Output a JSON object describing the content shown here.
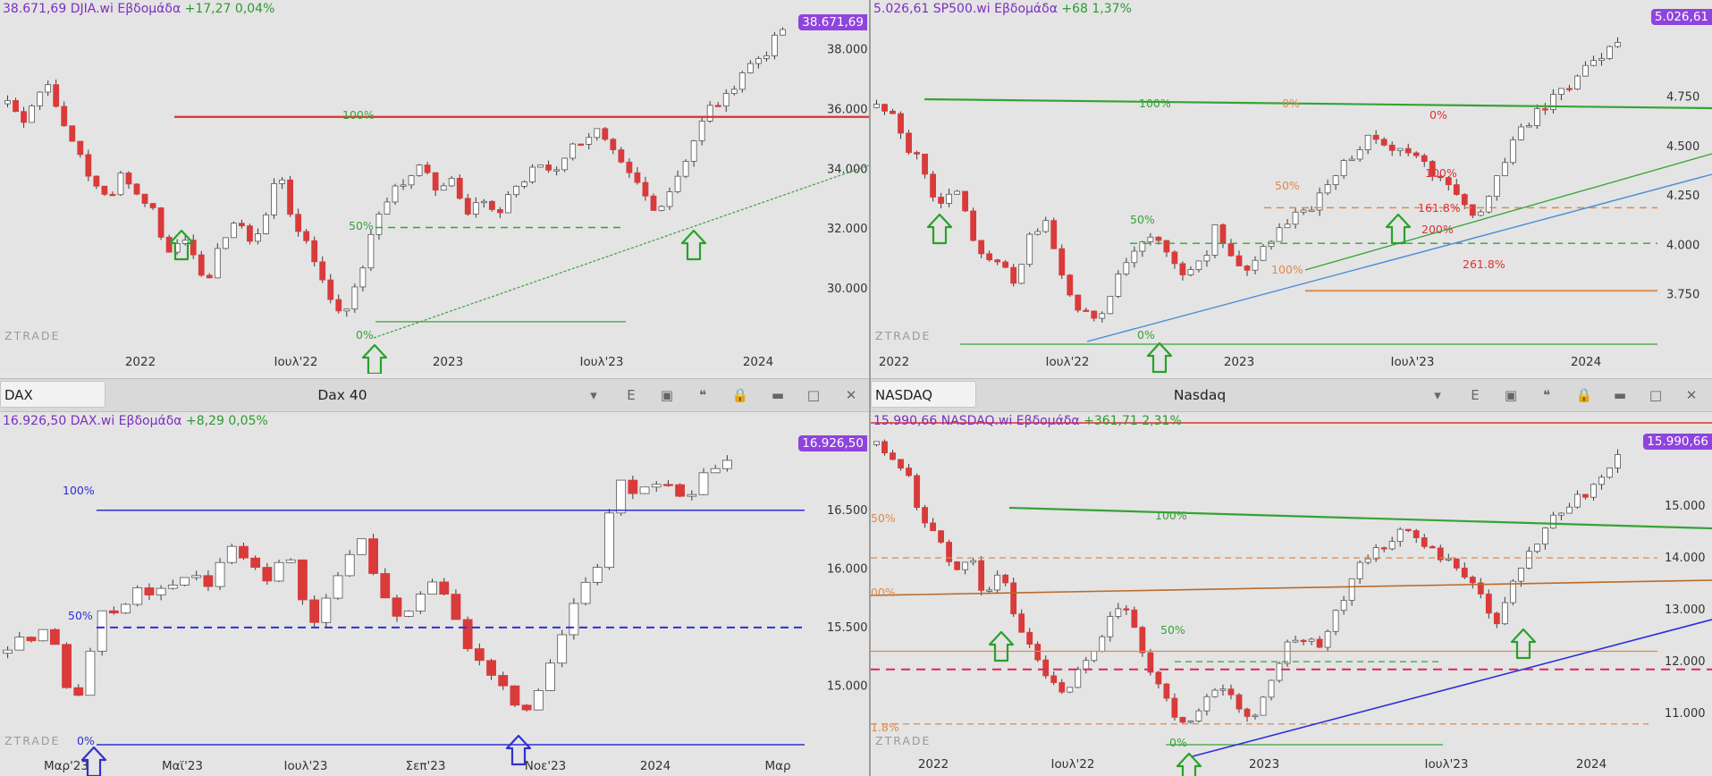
{
  "panes": [
    {
      "id": "djia",
      "info": {
        "price": "38.671,69",
        "symbol": "DJIA.wi",
        "period": "Εβδομάδα",
        "change": "+17,27",
        "pct": "0,04%"
      },
      "price_tag": "38.671,69",
      "watermark": "ZTRADE",
      "toolbar": null
    },
    {
      "id": "sp500",
      "info": {
        "price": "5.026,61",
        "symbol": "SP500.wi",
        "period": "Εβδομάδα",
        "change": "+68",
        "pct": "1,37%"
      },
      "price_tag": "5.026,61",
      "watermark": "ZTRADE",
      "toolbar": null
    },
    {
      "id": "dax",
      "info": {
        "price": "16.926,50",
        "symbol": "DAX.wi",
        "period": "Εβδομάδα",
        "change": "+8,29",
        "pct": "0,05%"
      },
      "price_tag": "16.926,50",
      "watermark": "ZTRADE",
      "toolbar": {
        "symbol": "DAX",
        "name": "Dax 40",
        "menu_letter": "E"
      }
    },
    {
      "id": "nasdaq",
      "info": {
        "price": "15.990,66",
        "symbol": "NASDAQ.wi",
        "period": "Εβδομάδα",
        "change": "+361,71",
        "pct": "2,31%"
      },
      "price_tag": "15.990,66",
      "watermark": "ZTRADE",
      "toolbar": {
        "symbol": "NASDAQ",
        "name": "Nasdaq",
        "menu_letter": "E"
      }
    }
  ],
  "colors": {
    "up": "#ffffff",
    "down": "#d93a3a",
    "wick": "#3a3a3a",
    "fib_green": "#36a336",
    "fib_orange": "#e0894a",
    "fib_red": "#e03030",
    "blue": "#2e2ed8",
    "arrow_green": "#2aa02a",
    "arrow_blue": "#3030d0",
    "tag": "#8e44dd"
  },
  "chart_data": [
    {
      "type": "candlestick",
      "id": "djia",
      "x_ticks": [
        "2022",
        "Ιουλ'22",
        "2023",
        "Ιουλ'23",
        "2024"
      ],
      "y_ticks": [
        "38.000",
        "36.000",
        "34.000",
        "32.000",
        "30.000"
      ],
      "ylim": [
        28000,
        39000
      ],
      "fib_labels": [
        "100%",
        "50%",
        "0%"
      ],
      "close_path": [
        36300,
        35600,
        36500,
        36900,
        35200,
        34600,
        33400,
        33000,
        34000,
        33100,
        32900,
        31200,
        31800,
        30900,
        30300,
        31700,
        32400,
        31400,
        32600,
        33900,
        32000,
        31600,
        30100,
        29300,
        29600,
        31200,
        32700,
        33400,
        33600,
        34300,
        33200,
        33900,
        32500,
        33000,
        32300,
        33300,
        33600,
        34200,
        33900,
        34600,
        35000,
        35300,
        34600,
        33900,
        33400,
        32600,
        33200,
        34100,
        35200,
        36100,
        36300,
        37200,
        37600,
        38000,
        38671
      ],
      "annotations": [
        "upward-arrows at swing lows",
        "horizontal resistance line",
        "rising trendline from 2022 low"
      ]
    },
    {
      "type": "candlestick",
      "id": "sp500",
      "x_ticks": [
        "2022",
        "Ιουλ'22",
        "2023",
        "Ιουλ'23",
        "2024"
      ],
      "y_ticks": [
        "4.750",
        "4.500",
        "4.250",
        "4.000",
        "3.750"
      ],
      "ylim": [
        3500,
        5150
      ],
      "fib_labels": [
        "100%",
        "0%",
        "0%",
        "50%",
        "100%",
        "161.8%",
        "200%",
        "261.8%",
        "50%",
        "100%",
        "0%"
      ],
      "close_path": [
        4700,
        4650,
        4500,
        4400,
        4200,
        4300,
        4100,
        3900,
        3950,
        3800,
        4050,
        4150,
        3850,
        3700,
        3600,
        3700,
        3900,
        4000,
        4050,
        3950,
        3850,
        3900,
        4100,
        3950,
        3850,
        3980,
        4100,
        4150,
        4180,
        4300,
        4400,
        4450,
        4550,
        4480,
        4500,
        4450,
        4350,
        4300,
        4200,
        4150,
        4300,
        4500,
        4600,
        4700,
        4750,
        4800,
        4900,
        4960,
        5026
      ],
      "annotations": [
        "upward-arrows at swing lows",
        "fibonacci retracement/extension levels",
        "rising trendlines"
      ]
    },
    {
      "type": "candlestick",
      "id": "dax",
      "x_ticks": [
        "Μαρ'23",
        "Μαϊ'23",
        "Ιουλ'23",
        "Σεπ'23",
        "Νοε'23",
        "2024",
        "Μαρ"
      ],
      "y_ticks": [
        "16.500",
        "16.000",
        "15.500",
        "15.000"
      ],
      "ylim": [
        14500,
        17200
      ],
      "fib_labels": [
        "100%",
        "50%",
        "0%"
      ],
      "close_path": [
        15350,
        15450,
        15400,
        15550,
        15200,
        14800,
        15100,
        15600,
        15650,
        15700,
        15800,
        15750,
        15850,
        15900,
        15950,
        15850,
        15950,
        16200,
        16050,
        16000,
        15900,
        16150,
        16000,
        15550,
        15600,
        15950,
        16100,
        16300,
        15900,
        15750,
        15550,
        15700,
        15900,
        15800,
        15650,
        15300,
        15200,
        15050,
        14950,
        14800,
        14800,
        15100,
        15300,
        15600,
        15900,
        16000,
        16500,
        16750,
        16650,
        16700,
        16800,
        16700,
        16600,
        16800,
        16900,
        16926
      ],
      "annotations": [
        "blue fib levels",
        "blue upward arrows at lows"
      ]
    },
    {
      "type": "candlestick",
      "id": "nasdaq",
      "x_ticks": [
        "2022",
        "Ιουλ'22",
        "2023",
        "Ιουλ'23",
        "2024"
      ],
      "y_ticks": [
        "15.000",
        "14.000",
        "13.000",
        "12.000",
        "11.000"
      ],
      "ylim": [
        10400,
        16600
      ],
      "fib_labels": [
        "50%",
        "100%",
        "00%",
        "50%",
        "1.8%",
        "0%"
      ],
      "close_path": [
        16200,
        15800,
        15600,
        14600,
        14400,
        13600,
        14100,
        13200,
        13800,
        12700,
        12200,
        11700,
        11400,
        11800,
        12100,
        12800,
        13000,
        12400,
        11700,
        11100,
        10800,
        11100,
        11600,
        11300,
        10900,
        11200,
        12000,
        12500,
        12400,
        12300,
        13100,
        13700,
        14100,
        14300,
        14600,
        14300,
        14200,
        13900,
        13700,
        13400,
        12600,
        13300,
        14000,
        14400,
        14900,
        15000,
        15300,
        15600,
        15990
      ],
      "annotations": [
        "upward-arrows at swing lows",
        "horizontal fib levels",
        "rising blue trendline"
      ]
    }
  ]
}
